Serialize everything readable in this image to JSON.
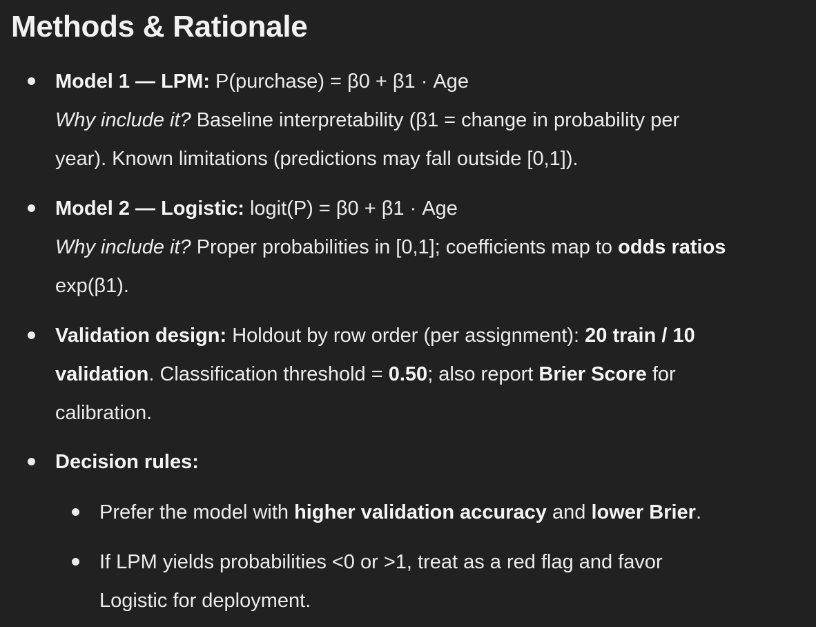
{
  "heading": "Methods & Rationale",
  "model1": {
    "label": "Model 1 — LPM:",
    "formula": "P(purchase) = β0 + β1 · Age",
    "why": "Why include it?",
    "rationale_a": "Baseline interpretability (β1 = change in probability per",
    "rationale_b": "year). Known limitations (predictions may fall outside [0,1])."
  },
  "model2": {
    "label": "Model 2 — Logistic:",
    "formula": "logit(P) = β0 + β1 · Age",
    "why": "Why include it?",
    "rationale_a": "Proper probabilities in [0,1]; coefficients map to",
    "odds_ratios": "odds ratios",
    "rationale_b": "exp(β1)."
  },
  "validation": {
    "label": "Validation design:",
    "text_a": "Holdout by row order (per assignment):",
    "split_a": "20 train / 10",
    "split_b": "validation",
    "text_b": ". Classification threshold =",
    "threshold": "0.50",
    "text_c": "; also report",
    "brier_score": "Brier Score",
    "text_d": "for",
    "text_e": "calibration."
  },
  "decision": {
    "label": "Decision rules:",
    "rule1": {
      "text_a": "Prefer the model with",
      "accuracy": "higher validation accuracy",
      "text_b": "and",
      "brier": "lower Brier",
      "text_c": "."
    },
    "rule2": {
      "text_a": "If LPM yields probabilities <0 or >1, treat as a red flag and favor",
      "text_b": "Logistic for deployment."
    }
  }
}
